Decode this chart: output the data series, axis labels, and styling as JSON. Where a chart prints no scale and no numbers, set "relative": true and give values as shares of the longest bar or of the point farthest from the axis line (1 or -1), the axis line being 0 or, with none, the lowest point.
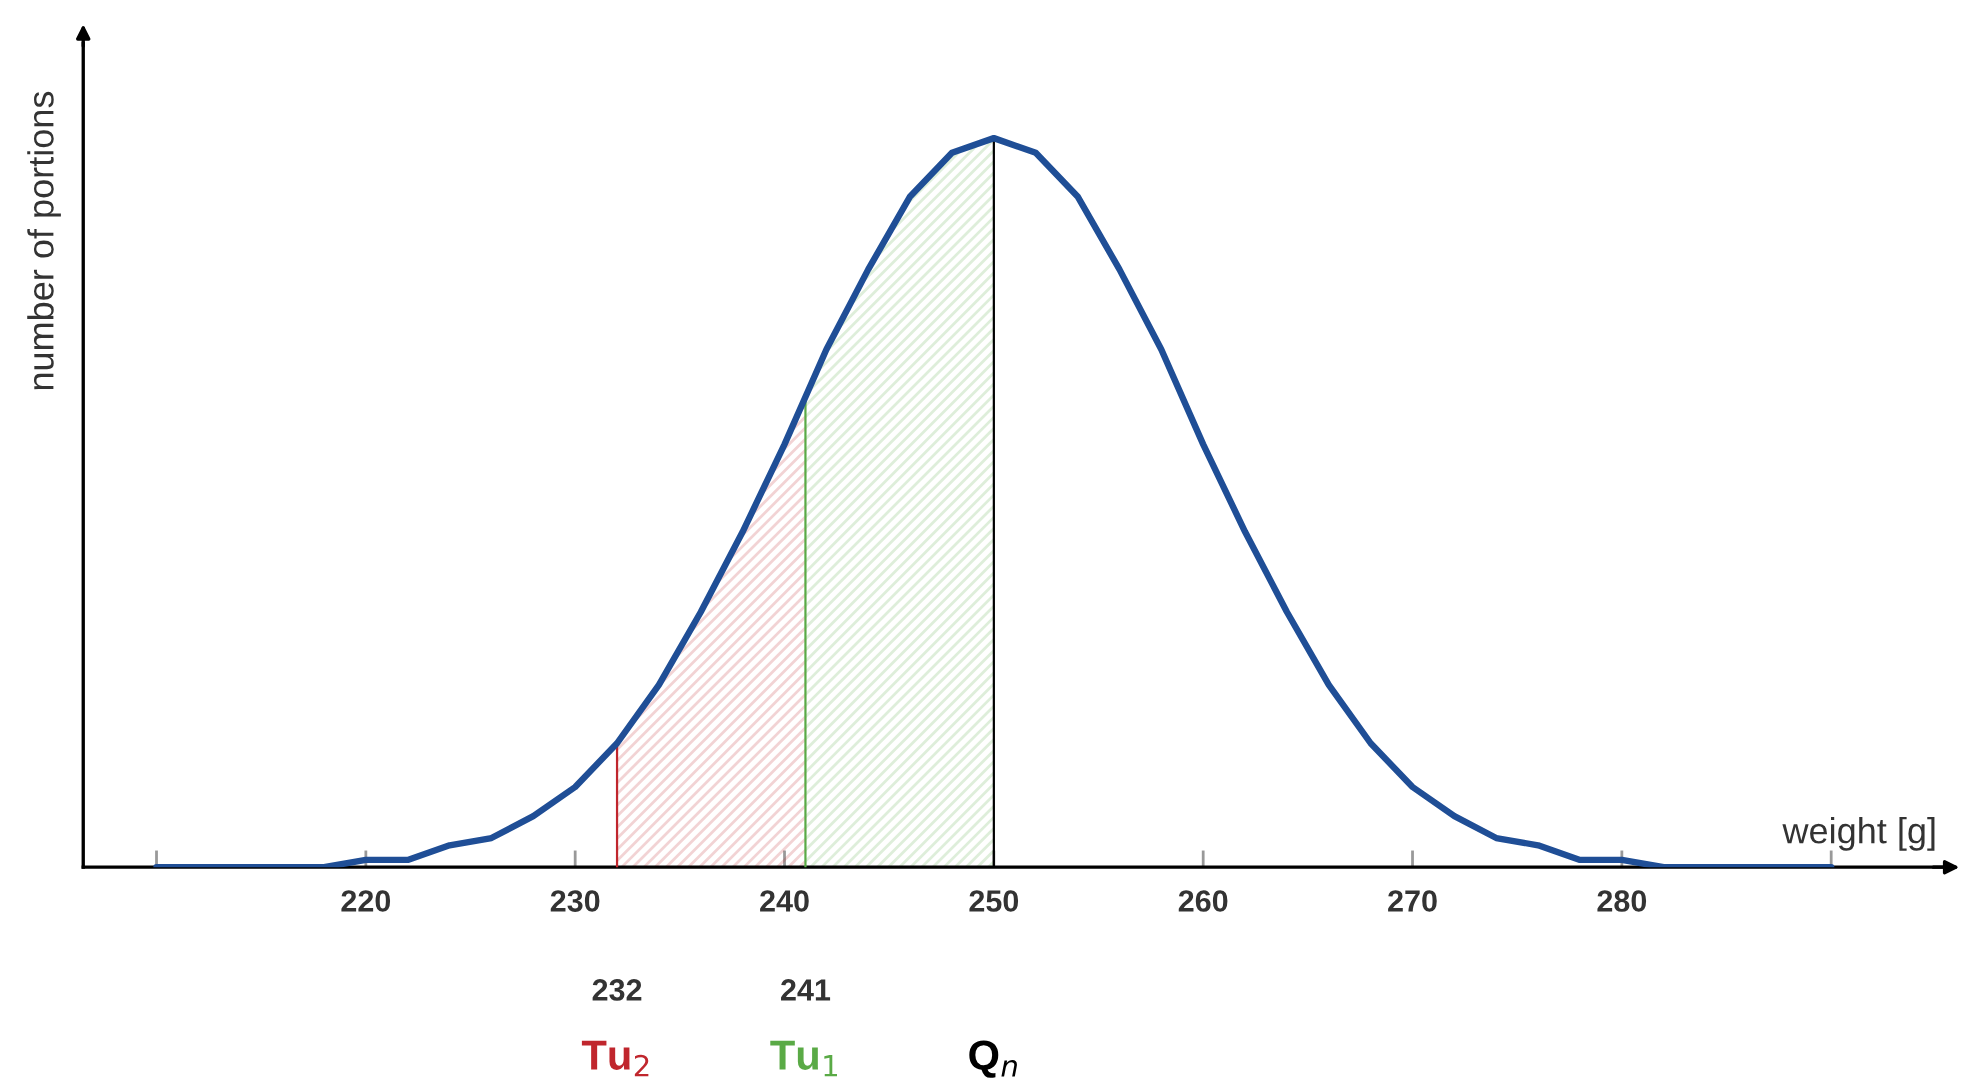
{
  "chart_data": {
    "type": "line",
    "relative": true,
    "xlabel": "weight [g]",
    "ylabel": "number of portions",
    "x": [
      210,
      212,
      214,
      216,
      218,
      220,
      222,
      224,
      226,
      228,
      230,
      232,
      234,
      236,
      238,
      240,
      242,
      244,
      246,
      248,
      250,
      252,
      254,
      256,
      258,
      260,
      262,
      264,
      266,
      268,
      270,
      272,
      274,
      276,
      278,
      280,
      282,
      284,
      286,
      288,
      290
    ],
    "series": [
      {
        "color": "#1f4e96",
        "values": [
          0,
          0,
          0,
          0,
          0,
          0.01,
          0.01,
          0.03,
          0.04,
          0.07,
          0.11,
          0.17,
          0.25,
          0.35,
          0.46,
          0.58,
          0.71,
          0.82,
          0.92,
          0.98,
          1,
          0.98,
          0.92,
          0.82,
          0.71,
          0.58,
          0.46,
          0.35,
          0.25,
          0.17,
          0.11,
          0.07,
          0.04,
          0.03,
          0.01,
          0.01,
          0,
          0,
          0,
          0,
          0
        ]
      }
    ],
    "xlim": [
      206.5,
      295.5
    ],
    "xticks": [
      {
        "value": 210,
        "label": null
      },
      220,
      230,
      240,
      250,
      260,
      270,
      280,
      {
        "value": 290,
        "label": null
      }
    ],
    "bands": [
      {
        "axis": "x",
        "from": 232,
        "to": 241,
        "color": "#c0262d"
      },
      {
        "axis": "x",
        "from": 241,
        "to": 250,
        "color": "#5aaa46"
      }
    ],
    "ref_lines": [
      {
        "axis": "x",
        "value": 232,
        "label": "Tu$_{2}$",
        "color": "#c0262d"
      },
      {
        "axis": "x",
        "value": 241,
        "label": "Tu$_{1}$",
        "color": "#5aaa46"
      },
      {
        "axis": "x",
        "value": 250,
        "label": "Q$_{n}$",
        "color": "#000000"
      }
    ],
    "x2lim": [
      206.5,
      295.5
    ],
    "x2ticks": [
      232,
      241
    ],
    "grid": false,
    "legend": false,
    "marker": "none",
    "line_style": "solid"
  }
}
